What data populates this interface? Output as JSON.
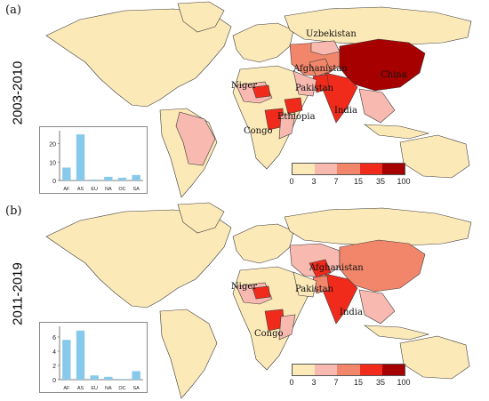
{
  "panels": [
    {
      "label": "(a)",
      "period": "2003-2010",
      "country_labels": [
        "Uzbekistan",
        "Afghanistan",
        "Niger",
        "Pakistan",
        "China",
        "Ethiopia",
        "India",
        "Congo"
      ],
      "bars": {
        "categories": [
          "AF",
          "AS",
          "EU",
          "NA",
          "OC",
          "SA"
        ],
        "values": [
          7,
          25,
          0.5,
          2,
          1.5,
          3
        ],
        "ylim": [
          0,
          27
        ],
        "yticks": [
          "0",
          "10",
          "20"
        ]
      }
    },
    {
      "label": "(b)",
      "period": "2011-2019",
      "country_labels": [
        "Afghanistan",
        "Niger",
        "Pakistan",
        "India",
        "Congo"
      ],
      "bars": {
        "categories": [
          "AF",
          "AS",
          "EU",
          "NA",
          "OC",
          "SA"
        ],
        "values": [
          5.6,
          6.9,
          0.6,
          0.4,
          0.1,
          1.2
        ],
        "ylim": [
          0,
          7.5
        ],
        "yticks": [
          "0",
          "2",
          "4",
          "6"
        ]
      }
    }
  ],
  "legend": {
    "ticks": [
      "0",
      "3",
      "7",
      "15",
      "35",
      "100"
    ],
    "colors": [
      "#fce9b8",
      "#f7b9b0",
      "#f2866a",
      "#f12b1b",
      "#a60000"
    ]
  },
  "colors": {
    "land_low": "#fce9b8",
    "ocean": "#ffffff",
    "bar": "#86c9ea",
    "border": "#3b3b3b"
  }
}
